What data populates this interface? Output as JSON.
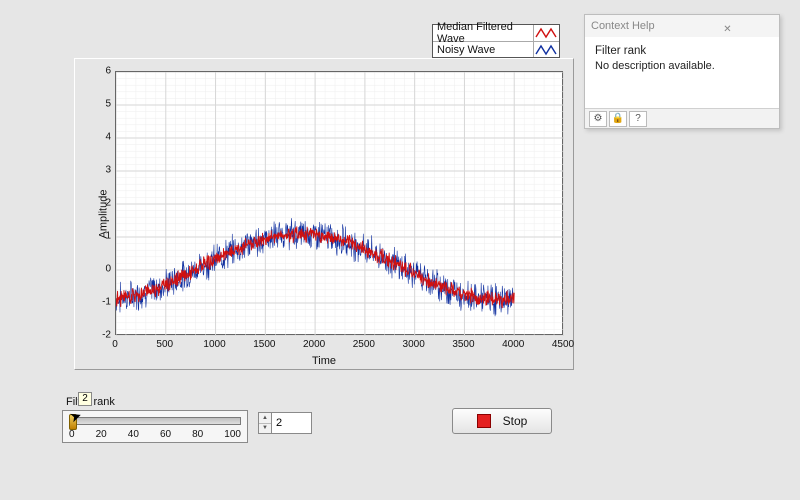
{
  "legend": {
    "items": [
      {
        "label": "Median Filtered Wave",
        "color": "#d01010"
      },
      {
        "label": "Noisy Wave",
        "color": "#1030a0"
      }
    ]
  },
  "chart": {
    "type": "line",
    "xlabel": "Time",
    "ylabel": "Amplitude",
    "xlim": [
      0,
      4500
    ],
    "ylim": [
      -2,
      6
    ],
    "xtick_step": 500,
    "ytick_step": 1,
    "xticks": [
      0,
      500,
      1000,
      1500,
      2000,
      2500,
      3000,
      3500,
      4000,
      4500
    ],
    "yticks": [
      -2,
      -1,
      0,
      1,
      2,
      3,
      4,
      5,
      6
    ],
    "background_color": "#ffffff",
    "grid_color": "#d6d6d6",
    "minor_grid_color": "#eeeeee",
    "panel_color": "#e6e6e6",
    "font_size": 11,
    "series": {
      "noisy": {
        "color": "#1030a0",
        "linewidth": 0.6,
        "noise_amp": 0.55
      },
      "filtered": {
        "color": "#d01010",
        "linewidth": 0.9,
        "noise_amp": 0.28
      }
    },
    "signal": {
      "npoints": 4000,
      "base_amplitude": 1.0,
      "base_offset": 0.1,
      "period": 4000,
      "phase": -1.35
    }
  },
  "context_help": {
    "window_title": "Context Help",
    "title": "Filter rank",
    "description": "No description available."
  },
  "slider": {
    "label": "Filter rank",
    "min": 0,
    "max": 100,
    "step": 20,
    "ticks": [
      0,
      20,
      40,
      60,
      80,
      100
    ],
    "value": 2
  },
  "numeric": {
    "value": 2
  },
  "stop_button": {
    "label": "Stop",
    "indicator_color": "#e42020"
  },
  "tooltip": {
    "text": "2"
  },
  "colors": {
    "page_bg": "#e6e6e6",
    "panel_border_light": "#ffffff",
    "panel_border_dark": "#9a9a9a"
  }
}
